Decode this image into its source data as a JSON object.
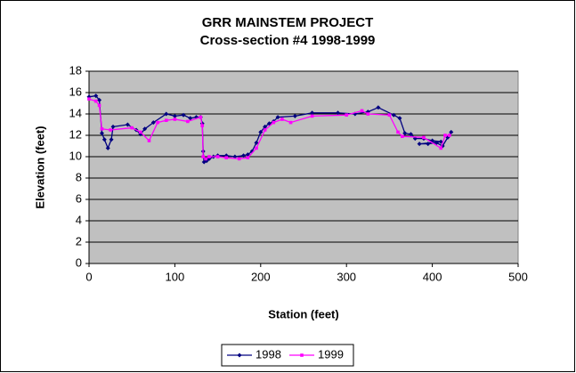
{
  "chart_data": {
    "type": "scatter-line",
    "title": "GRR MAINSTEM PROJECT",
    "subtitle": "Cross-section #4 1998-1999",
    "x_label": "Station (feet)",
    "y_label": "Elevation (feet)",
    "xlim": [
      0,
      500
    ],
    "xticks": [
      0,
      100,
      200,
      300,
      400,
      500
    ],
    "ylim": [
      0,
      18
    ],
    "yticks": [
      0,
      2,
      4,
      6,
      8,
      10,
      12,
      14,
      16,
      18
    ],
    "grid": true,
    "legend": "bottom",
    "series": [
      {
        "name": "1998",
        "color": "#000080",
        "marker": "diamond",
        "x": [
          0,
          8,
          12,
          15,
          18,
          22,
          26,
          28,
          45,
          55,
          60,
          65,
          75,
          90,
          100,
          110,
          118,
          125,
          130,
          132,
          133,
          134,
          137,
          140,
          145,
          150,
          160,
          170,
          180,
          185,
          190,
          195,
          200,
          205,
          210,
          215,
          220,
          240,
          260,
          290,
          310,
          325,
          337,
          355,
          362,
          368,
          375,
          380,
          390,
          400,
          410,
          385,
          395,
          405,
          412,
          418,
          422
        ],
        "values": [
          15.6,
          15.7,
          15.3,
          12.2,
          11.6,
          10.8,
          11.6,
          12.8,
          13,
          12.5,
          12.1,
          12.6,
          13.2,
          14,
          13.8,
          13.9,
          13.6,
          13.7,
          13.7,
          13.1,
          10.5,
          9.5,
          9.6,
          9.8,
          10,
          10.1,
          10.1,
          10,
          10.1,
          10.2,
          10.5,
          11.3,
          12.3,
          12.8,
          13.1,
          13.3,
          13.7,
          13.8,
          14.1,
          14.1,
          14,
          14.2,
          14.6,
          13.9,
          13.6,
          12.2,
          12.1,
          11.7,
          11.7,
          11.5,
          11.4,
          11.2,
          11.2,
          11.3,
          11,
          11.8,
          12.3
        ]
      },
      {
        "name": "1999",
        "color": "#ff00ff",
        "marker": "square",
        "x": [
          0,
          8,
          12,
          15,
          25,
          50,
          60,
          70,
          80,
          90,
          100,
          115,
          130,
          132,
          133,
          136,
          140,
          150,
          160,
          175,
          185,
          195,
          205,
          215,
          225,
          235,
          260,
          300,
          318,
          325,
          350,
          360,
          365,
          390,
          410,
          415,
          420
        ],
        "values": [
          15.4,
          15.2,
          14.8,
          12.6,
          12.5,
          12.7,
          12.3,
          11.5,
          13.2,
          13.4,
          13.5,
          13.3,
          13.7,
          12.9,
          10,
          9.8,
          10,
          10,
          9.9,
          9.8,
          9.9,
          10.8,
          12.5,
          13.2,
          13.5,
          13.2,
          13.8,
          13.9,
          14.3,
          14,
          13.9,
          12.3,
          11.9,
          11.8,
          10.8,
          12,
          12
        ]
      }
    ]
  }
}
